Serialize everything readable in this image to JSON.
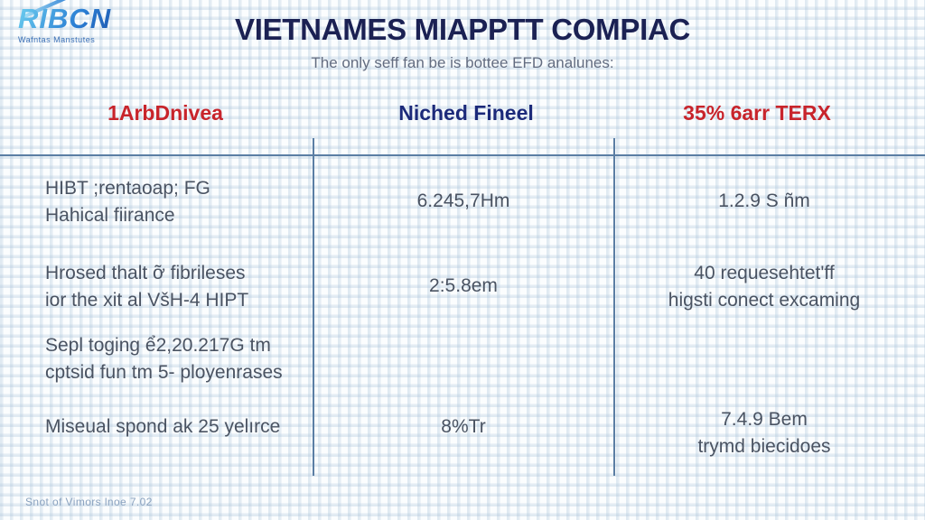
{
  "logo": {
    "text": "RIBCN",
    "tagline": "Wafntas Manstutes"
  },
  "header": {
    "title": "VIETNAMES MIAPPTT COMPIAC",
    "subtitle": "The only seff fan be is bottee EFD analunes:"
  },
  "columns": [
    {
      "label": "1ArbDnivea",
      "color": "#c8242b"
    },
    {
      "label": "Niched Fineel",
      "color": "#1c2a7a"
    },
    {
      "label": "35% 6arr TERX",
      "color": "#c8242b"
    }
  ],
  "rows": [
    {
      "feature": [
        "HIBT ;rentaoap; FG",
        "Hahical fiirance"
      ],
      "middle": [
        "6.245,7Hm"
      ],
      "right": [
        "1.2.9 S ñm"
      ]
    },
    {
      "feature": [
        "Hrosed thalt ỡ fibrileses",
        "ior the xit al VšH-4 HIPT"
      ],
      "middle": [
        "2:5.8em"
      ],
      "right": [
        "40 requesehtet'ff",
        "higsti conect excaming"
      ]
    },
    {
      "feature": [
        "Sepl toging ể2,20.217G tm",
        "cptsid fun tm 5- ployenrases"
      ],
      "middle": [],
      "right": []
    },
    {
      "feature": [
        "Miseual spond ak 25 yelırce"
      ],
      "middle": [
        "8%Tr"
      ],
      "right": [
        "7.4.9 Bem",
        "trymd biecidoes"
      ]
    }
  ],
  "footer": {
    "text": "Snot of Vimors lnoe 7.02"
  },
  "colors": {
    "accent_red": "#c8242b",
    "accent_navy": "#1c2a7a",
    "title_navy": "#1b2153",
    "body_text": "#4a5362",
    "divider": "#5b7ea4",
    "grid_line": "#a4bed7"
  }
}
